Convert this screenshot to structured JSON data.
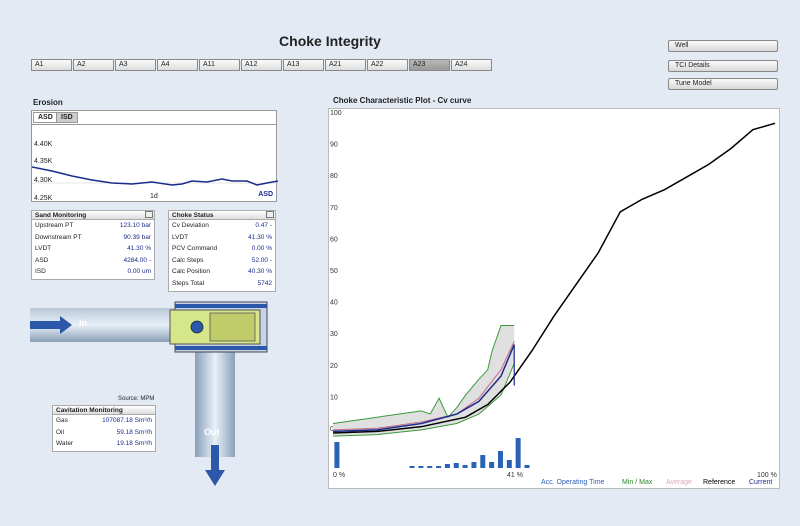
{
  "title": "Choke Integrity",
  "tabs": [
    "A1",
    "A2",
    "A3",
    "A4",
    "A11",
    "A12",
    "A13",
    "A21",
    "A22",
    "A23",
    "A24"
  ],
  "active_tab": "A23",
  "right_buttons": [
    "Well",
    "TCI Details",
    "Tune Model"
  ],
  "erosion": {
    "title": "Erosion",
    "subtabs": [
      "ASD",
      "ISD"
    ],
    "yticks": [
      "4.40K",
      "4.35K",
      "4.30K",
      "4.25K"
    ],
    "xlabel": "1d",
    "series_label": "ASD"
  },
  "sand": {
    "title": "Sand Monitoring",
    "rows": [
      {
        "label": "Upstream PT",
        "value": "123.10 bar"
      },
      {
        "label": "Downstream PT",
        "value": "90.39 bar"
      },
      {
        "label": "LVDT",
        "value": "41.30 %"
      },
      {
        "label": "ASD",
        "value": "4284.00 -"
      },
      {
        "label": "ISD",
        "value": "0.00 um"
      }
    ]
  },
  "choke": {
    "title": "Choke Status",
    "rows": [
      {
        "label": "Cv Deviation",
        "value": "0.47 -"
      },
      {
        "label": "LVDT",
        "value": "41.30 %"
      },
      {
        "label": "PCV Command",
        "value": "0.00 %"
      },
      {
        "label": "Calc Steps",
        "value": "52.00 -"
      },
      {
        "label": "Calc Position",
        "value": "40.30 %"
      },
      {
        "label": "Steps Total",
        "value": "5742"
      }
    ]
  },
  "diagram": {
    "in": "In",
    "out": "Out",
    "source": "Source: MPM"
  },
  "cavitation": {
    "title": "Cavitation Monitoring",
    "rows": [
      {
        "label": "Gas",
        "value": "107087.18 Sm³/h"
      },
      {
        "label": "Oil",
        "value": "59.18 Sm³/h"
      },
      {
        "label": "Water",
        "value": "19.18 Sm³/h"
      }
    ]
  },
  "chart_data": {
    "type": "line",
    "title": "Choke Characteristic Plot - Cv curve",
    "ylim": [
      0,
      100
    ],
    "yticks": [
      "100",
      "90",
      "80",
      "70",
      "60",
      "50",
      "40",
      "30",
      "20",
      "10",
      "0"
    ],
    "xticks": [
      "0 %",
      "41 %",
      "100 %"
    ],
    "legend": [
      {
        "name": "Acc. Operating Time",
        "color": "#2a62b8"
      },
      {
        "name": "Min / Max",
        "color": "#2a8a2a"
      },
      {
        "name": "Average",
        "color": "#d8a8b8"
      },
      {
        "name": "Reference",
        "color": "#000000"
      },
      {
        "name": "Current",
        "color": "#1a2b8c"
      }
    ],
    "reference": [
      [
        0,
        0
      ],
      [
        10,
        0.5
      ],
      [
        20,
        2
      ],
      [
        30,
        5
      ],
      [
        35,
        9
      ],
      [
        40,
        16
      ],
      [
        45,
        26
      ],
      [
        50,
        37
      ],
      [
        55,
        47
      ],
      [
        60,
        57
      ],
      [
        65,
        70
      ],
      [
        70,
        74
      ],
      [
        75,
        77
      ],
      [
        80,
        81
      ],
      [
        85,
        85
      ],
      [
        90,
        90
      ],
      [
        95,
        96
      ],
      [
        100,
        98
      ]
    ],
    "current": [
      [
        0,
        0.5
      ],
      [
        10,
        1
      ],
      [
        20,
        3
      ],
      [
        28,
        6
      ],
      [
        33,
        10
      ],
      [
        38,
        18
      ],
      [
        41,
        28
      ]
    ],
    "average": [
      [
        0,
        1
      ],
      [
        10,
        1.5
      ],
      [
        20,
        3.5
      ],
      [
        28,
        6
      ],
      [
        33,
        11
      ],
      [
        38,
        20
      ],
      [
        41,
        29
      ]
    ],
    "min": [
      [
        0,
        -1
      ],
      [
        10,
        -0.5
      ],
      [
        20,
        1
      ],
      [
        28,
        3
      ],
      [
        33,
        6
      ],
      [
        38,
        12
      ],
      [
        41,
        22
      ]
    ],
    "max": [
      [
        0,
        3
      ],
      [
        10,
        5
      ],
      [
        15,
        6
      ],
      [
        20,
        7
      ],
      [
        22,
        6
      ],
      [
        24,
        11
      ],
      [
        26,
        5
      ],
      [
        28,
        8
      ],
      [
        30,
        12
      ],
      [
        33,
        17
      ],
      [
        35,
        20
      ],
      [
        36,
        26
      ],
      [
        38,
        34
      ],
      [
        41,
        34
      ]
    ],
    "histogram": [
      [
        1,
        26
      ],
      [
        18,
        2
      ],
      [
        20,
        2
      ],
      [
        22,
        2
      ],
      [
        24,
        2
      ],
      [
        26,
        4
      ],
      [
        28,
        5
      ],
      [
        30,
        3
      ],
      [
        32,
        6
      ],
      [
        34,
        13
      ],
      [
        36,
        6
      ],
      [
        38,
        17
      ],
      [
        40,
        8
      ],
      [
        42,
        30
      ],
      [
        44,
        3
      ]
    ]
  }
}
